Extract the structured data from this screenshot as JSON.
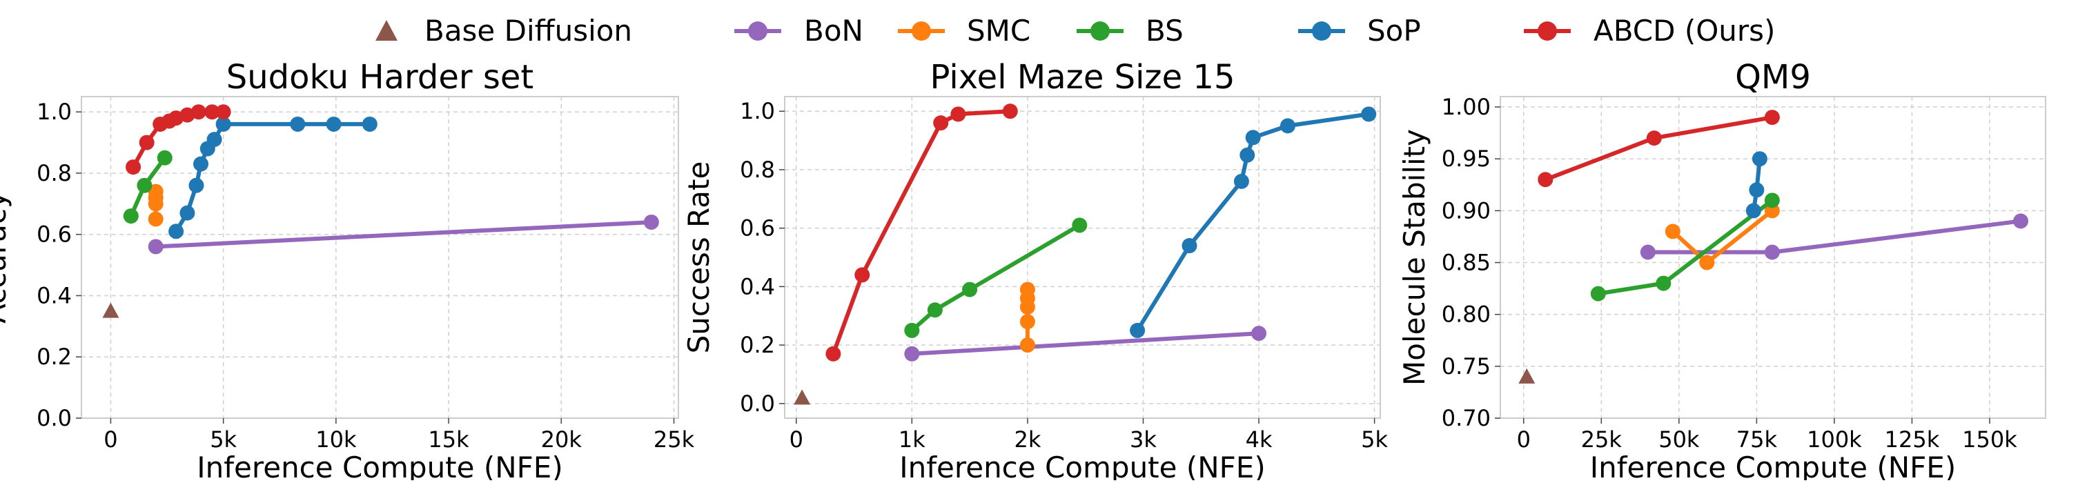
{
  "legend": {
    "placement": "top-center",
    "entries": [
      {
        "key": "base",
        "label": "Base Diffusion",
        "color": "#8c564b",
        "marker": "triangle"
      },
      {
        "key": "bon",
        "label": "BoN",
        "color": "#9467bd",
        "marker": "circle"
      },
      {
        "key": "smc",
        "label": "SMC",
        "color": "#ff7f0e",
        "marker": "circle"
      },
      {
        "key": "bs",
        "label": "BS",
        "color": "#2ca02c",
        "marker": "circle"
      },
      {
        "key": "sop",
        "label": "SoP",
        "color": "#1f77b4",
        "marker": "circle"
      },
      {
        "key": "abcd",
        "label": "ABCD (Ours)",
        "color": "#d62728",
        "marker": "circle"
      }
    ]
  },
  "chart_data": [
    {
      "type": "line",
      "title": "Sudoku Harder set",
      "xlabel": "Inference Compute (NFE)",
      "ylabel": "Accuracy",
      "xlim": [
        -1300,
        25200
      ],
      "ylim": [
        0.0,
        1.05
      ],
      "xticks": [
        {
          "v": 0,
          "label": "0"
        },
        {
          "v": 5000,
          "label": "5k"
        },
        {
          "v": 10000,
          "label": "10k"
        },
        {
          "v": 15000,
          "label": "15k"
        },
        {
          "v": 20000,
          "label": "20k"
        },
        {
          "v": 25000,
          "label": "25k"
        }
      ],
      "yticks": [
        {
          "v": 0.0,
          "label": "0.0"
        },
        {
          "v": 0.2,
          "label": "0.2"
        },
        {
          "v": 0.4,
          "label": "0.4"
        },
        {
          "v": 0.6,
          "label": "0.6"
        },
        {
          "v": 0.8,
          "label": "0.8"
        },
        {
          "v": 1.0,
          "label": "1.0"
        }
      ],
      "grid": true,
      "series": [
        {
          "name": "Base Diffusion",
          "key": "base",
          "marker": "triangle",
          "points": [
            [
              0,
              0.35
            ]
          ]
        },
        {
          "name": "BoN",
          "key": "bon",
          "points": [
            [
              2000,
              0.56
            ],
            [
              24000,
              0.64
            ]
          ]
        },
        {
          "name": "SMC",
          "key": "smc",
          "points": [
            [
              2000,
              0.65
            ],
            [
              2000,
              0.7
            ],
            [
              2000,
              0.72
            ],
            [
              2000,
              0.74
            ]
          ]
        },
        {
          "name": "BS",
          "key": "bs",
          "points": [
            [
              900,
              0.66
            ],
            [
              1500,
              0.76
            ],
            [
              2400,
              0.85
            ]
          ]
        },
        {
          "name": "SoP",
          "key": "sop",
          "points": [
            [
              2900,
              0.61
            ],
            [
              3400,
              0.67
            ],
            [
              3800,
              0.76
            ],
            [
              4000,
              0.83
            ],
            [
              4300,
              0.88
            ],
            [
              4600,
              0.91
            ],
            [
              5000,
              0.96
            ],
            [
              8300,
              0.96
            ],
            [
              9900,
              0.96
            ],
            [
              11500,
              0.96
            ]
          ]
        },
        {
          "name": "ABCD (Ours)",
          "key": "abcd",
          "points": [
            [
              1000,
              0.82
            ],
            [
              1600,
              0.9
            ],
            [
              2200,
              0.96
            ],
            [
              2600,
              0.97
            ],
            [
              2900,
              0.98
            ],
            [
              3400,
              0.99
            ],
            [
              3900,
              1.0
            ],
            [
              4500,
              1.0
            ],
            [
              5000,
              1.0
            ]
          ]
        }
      ]
    },
    {
      "type": "line",
      "title": "Pixel Maze Size 15",
      "xlabel": "Inference Compute (NFE)",
      "ylabel": "Success Rate",
      "xlim": [
        -100,
        5050
      ],
      "ylim": [
        -0.05,
        1.05
      ],
      "xticks": [
        {
          "v": 0,
          "label": "0"
        },
        {
          "v": 1000,
          "label": "1k"
        },
        {
          "v": 2000,
          "label": "2k"
        },
        {
          "v": 3000,
          "label": "3k"
        },
        {
          "v": 4000,
          "label": "4k"
        },
        {
          "v": 5000,
          "label": "5k"
        }
      ],
      "yticks": [
        {
          "v": 0.0,
          "label": "0.0"
        },
        {
          "v": 0.2,
          "label": "0.2"
        },
        {
          "v": 0.4,
          "label": "0.4"
        },
        {
          "v": 0.6,
          "label": "0.6"
        },
        {
          "v": 0.8,
          "label": "0.8"
        },
        {
          "v": 1.0,
          "label": "1.0"
        }
      ],
      "grid": true,
      "series": [
        {
          "name": "Base Diffusion",
          "key": "base",
          "marker": "triangle",
          "points": [
            [
              50,
              0.02
            ]
          ]
        },
        {
          "name": "BoN",
          "key": "bon",
          "points": [
            [
              1000,
              0.17
            ],
            [
              4000,
              0.24
            ]
          ]
        },
        {
          "name": "SMC",
          "key": "smc",
          "points": [
            [
              2000,
              0.2
            ],
            [
              2000,
              0.28
            ],
            [
              2000,
              0.33
            ],
            [
              2000,
              0.36
            ],
            [
              2000,
              0.39
            ]
          ]
        },
        {
          "name": "BS",
          "key": "bs",
          "points": [
            [
              1000,
              0.25
            ],
            [
              1200,
              0.32
            ],
            [
              1500,
              0.39
            ],
            [
              2450,
              0.61
            ]
          ]
        },
        {
          "name": "SoP",
          "key": "sop",
          "points": [
            [
              2950,
              0.25
            ],
            [
              3400,
              0.54
            ],
            [
              3850,
              0.76
            ],
            [
              3900,
              0.85
            ],
            [
              3950,
              0.91
            ],
            [
              4250,
              0.95
            ],
            [
              4950,
              0.99
            ]
          ]
        },
        {
          "name": "ABCD (Ours)",
          "key": "abcd",
          "points": [
            [
              320,
              0.17
            ],
            [
              570,
              0.44
            ],
            [
              1250,
              0.96
            ],
            [
              1400,
              0.99
            ],
            [
              1850,
              1.0
            ]
          ]
        }
      ]
    },
    {
      "type": "line",
      "title": "QM9",
      "xlabel": "Inference Compute (NFE)",
      "ylabel": "Molecule Stability",
      "xlim": [
        -7500,
        168000
      ],
      "ylim": [
        0.7,
        1.01
      ],
      "xticks": [
        {
          "v": 0,
          "label": "0"
        },
        {
          "v": 25000,
          "label": "25k"
        },
        {
          "v": 50000,
          "label": "50k"
        },
        {
          "v": 75000,
          "label": "75k"
        },
        {
          "v": 100000,
          "label": "100k"
        },
        {
          "v": 125000,
          "label": "125k"
        },
        {
          "v": 150000,
          "label": "150k"
        }
      ],
      "yticks": [
        {
          "v": 0.7,
          "label": "0.70"
        },
        {
          "v": 0.75,
          "label": "0.75"
        },
        {
          "v": 0.8,
          "label": "0.80"
        },
        {
          "v": 0.85,
          "label": "0.85"
        },
        {
          "v": 0.9,
          "label": "0.90"
        },
        {
          "v": 0.95,
          "label": "0.95"
        },
        {
          "v": 1.0,
          "label": "1.00"
        }
      ],
      "grid": true,
      "series": [
        {
          "name": "Base Diffusion",
          "key": "base",
          "marker": "triangle",
          "points": [
            [
              1000,
              0.74
            ]
          ]
        },
        {
          "name": "BoN",
          "key": "bon",
          "points": [
            [
              40000,
              0.86
            ],
            [
              80000,
              0.86
            ],
            [
              160000,
              0.89
            ]
          ]
        },
        {
          "name": "SMC",
          "key": "smc",
          "points": [
            [
              48000,
              0.88
            ],
            [
              59000,
              0.85
            ],
            [
              80000,
              0.9
            ]
          ]
        },
        {
          "name": "BS",
          "key": "bs",
          "points": [
            [
              24000,
              0.82
            ],
            [
              45000,
              0.83
            ],
            [
              80000,
              0.91
            ]
          ]
        },
        {
          "name": "SoP",
          "key": "sop",
          "points": [
            [
              74000,
              0.9
            ],
            [
              75000,
              0.92
            ],
            [
              76000,
              0.95
            ]
          ]
        },
        {
          "name": "ABCD (Ours)",
          "key": "abcd",
          "points": [
            [
              7000,
              0.93
            ],
            [
              42000,
              0.97
            ],
            [
              80000,
              0.99
            ]
          ]
        }
      ]
    }
  ]
}
